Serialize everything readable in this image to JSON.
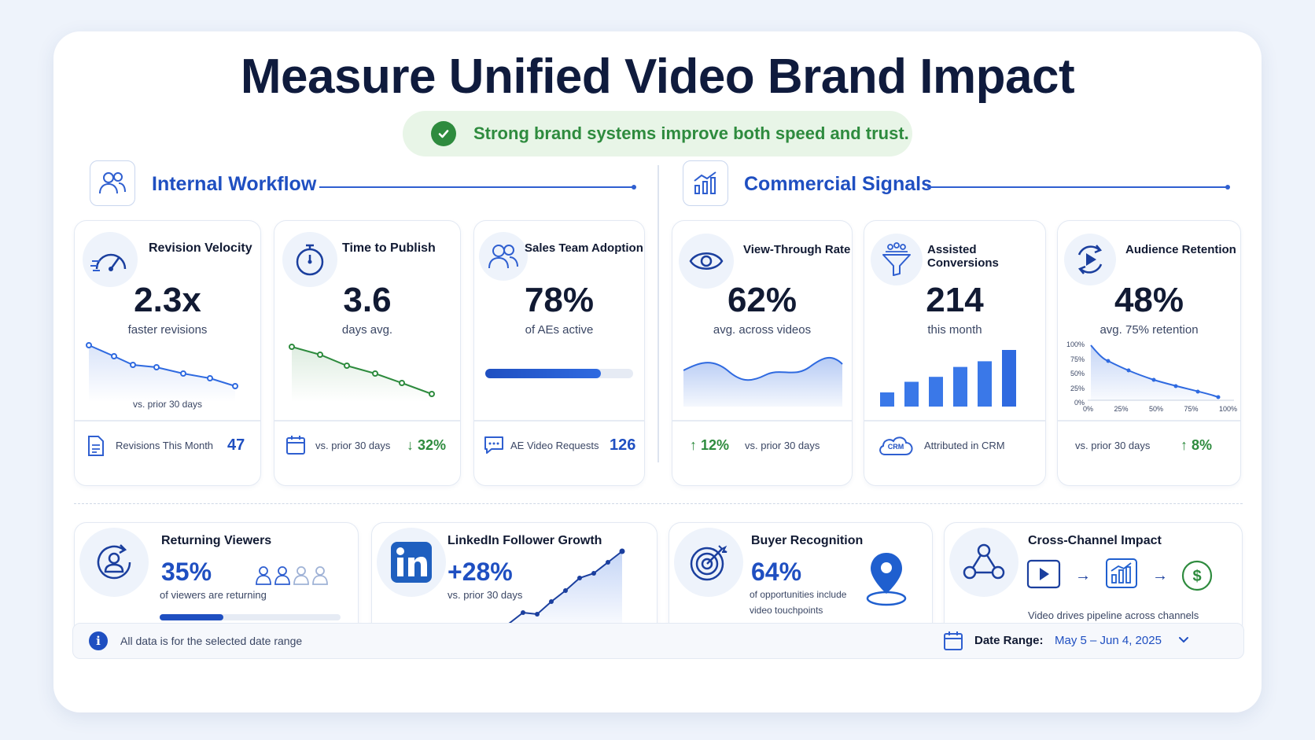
{
  "title": "Measure Unified Video Brand Impact",
  "banner": "Strong brand systems improve both speed and trust.",
  "sections": {
    "internal": "Internal Workflow",
    "commercial": "Commercial Signals"
  },
  "cards": {
    "revision": {
      "title": "Revision Velocity",
      "value": "2.3x",
      "sub": "faster revisions",
      "note": "vs. prior 30 days",
      "foot_label": "Revisions This Month",
      "foot_value": "47"
    },
    "publish": {
      "title": "Time to Publish",
      "value": "3.6",
      "sub": "days avg.",
      "foot_label": "vs. prior 30 days",
      "foot_value": "32%"
    },
    "adoption": {
      "title": "Sales Team Adoption",
      "value": "78%",
      "sub": "of AEs active",
      "progress": 0.78,
      "foot_label": "AE Video Requests",
      "foot_value": "126"
    },
    "vtr": {
      "title": "View-Through Rate",
      "value": "62%",
      "sub": "avg. across videos",
      "foot_value": "12%",
      "foot_label": "vs. prior 30 days"
    },
    "assisted": {
      "title": "Assisted Conversions",
      "value": "214",
      "sub": "this month",
      "cloud_label": "CRM",
      "foot_label": "Attributed in CRM",
      "bars": [
        2,
        3.5,
        4.2,
        5.6,
        6.4,
        8
      ]
    },
    "retention": {
      "title": "Audience Retention",
      "value": "48%",
      "sub": "avg. 75% retention",
      "y_ticks": [
        "100%",
        "75%",
        "50%",
        "25%",
        "0%"
      ],
      "x_ticks": [
        "0%",
        "25%",
        "50%",
        "75%",
        "100%"
      ],
      "foot_label": "vs. prior 30 days",
      "foot_value": "8%"
    }
  },
  "bottom": {
    "returning": {
      "title": "Returning Viewers",
      "value": "35%",
      "sub": "of viewers are returning",
      "progress": 0.35
    },
    "linkedin": {
      "title": "LinkedIn Follower Growth",
      "value": "+28%",
      "sub": "vs. prior 30 days"
    },
    "buyer": {
      "title": "Buyer Recognition",
      "value": "64%",
      "sub1": "of opportunities include",
      "sub2": "video touchpoints"
    },
    "cross": {
      "title": "Cross-Channel Impact",
      "sub": "Video drives pipeline across channels"
    }
  },
  "footer": {
    "info": "All data is for the selected date range",
    "date_label": "Date Range:",
    "date_value": "May 5 – Jun 4, 2025"
  },
  "colors": {
    "accent": "#1f4fc1",
    "green": "#2e8b3e",
    "chart_blue": "#2f6ae0"
  }
}
